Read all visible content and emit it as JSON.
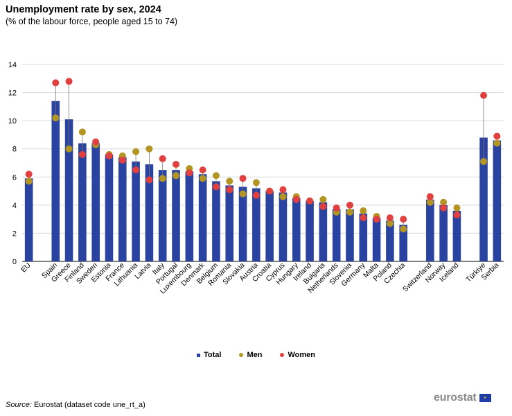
{
  "header": {
    "title": "Unemployment rate by sex, 2024",
    "subtitle": "(% of the labour force, people aged 15 to 74)"
  },
  "legend": {
    "total": "Total",
    "men": "Men",
    "women": "Women"
  },
  "footer": {
    "source_prefix": "Source:",
    "source_text": " Eurostat (dataset code une_rt_a)",
    "logo_text": "eurostat",
    "logo_flag_icon": "eu-flag-icon"
  },
  "colors": {
    "total": "#2b43a0",
    "men": "#b39524",
    "women": "#e04040",
    "grid": "#d9d9d9"
  },
  "chart_data": {
    "type": "bar",
    "ylim": [
      0,
      14
    ],
    "yticks": [
      0,
      2,
      4,
      6,
      8,
      10,
      12,
      14
    ],
    "grid": true,
    "legend_position": "bottom",
    "categories": [
      "EU",
      "Spain",
      "Greece",
      "Finland",
      "Sweden",
      "Estonia",
      "France",
      "Lithuania",
      "Latvia",
      "Italy",
      "Portugal",
      "Luxembourg",
      "Denmark",
      "Belgium",
      "Romania",
      "Slovakia",
      "Austria",
      "Croatia",
      "Cyprus",
      "Hungary",
      "Ireland",
      "Bulgaria",
      "Netherlands",
      "Slovenia",
      "Germany",
      "Malta",
      "Poland",
      "Czechia",
      "Switzerland",
      "Norway",
      "Iceland",
      "Türkiye",
      "Serbia"
    ],
    "groups": [
      1,
      27,
      3,
      2
    ],
    "series": [
      {
        "name": "Total",
        "type": "bar",
        "values": [
          5.9,
          11.4,
          10.1,
          8.4,
          8.4,
          7.6,
          7.4,
          7.1,
          6.9,
          6.5,
          6.5,
          6.4,
          6.2,
          5.7,
          5.4,
          5.3,
          5.2,
          5.0,
          4.9,
          4.5,
          4.3,
          4.2,
          3.7,
          3.7,
          3.4,
          3.1,
          2.9,
          2.6,
          4.4,
          4.0,
          3.6,
          8.8,
          8.6
        ]
      },
      {
        "name": "Men",
        "type": "dot",
        "values": [
          5.7,
          10.2,
          8.0,
          9.2,
          8.3,
          7.6,
          7.5,
          7.8,
          8.0,
          5.9,
          6.1,
          6.6,
          5.9,
          6.1,
          5.7,
          4.8,
          5.6,
          5.0,
          4.6,
          4.6,
          4.3,
          4.4,
          3.5,
          3.5,
          3.6,
          3.2,
          2.7,
          2.3,
          4.2,
          4.2,
          3.8,
          7.1,
          8.4
        ]
      },
      {
        "name": "Women",
        "type": "dot",
        "values": [
          6.2,
          12.7,
          12.8,
          7.6,
          8.5,
          7.5,
          7.2,
          6.5,
          5.8,
          7.3,
          6.9,
          6.3,
          6.5,
          5.3,
          5.1,
          5.9,
          4.7,
          5.0,
          5.1,
          4.4,
          4.3,
          3.9,
          3.8,
          4.0,
          3.1,
          3.0,
          3.1,
          3.0,
          4.6,
          3.8,
          3.3,
          11.8,
          8.9
        ]
      }
    ]
  }
}
